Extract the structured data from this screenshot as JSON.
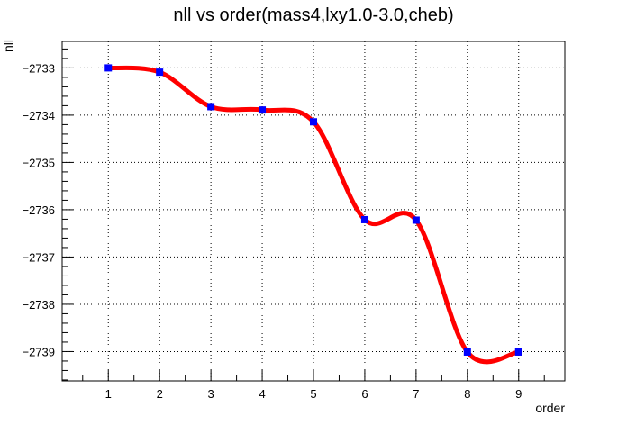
{
  "chart_data": {
    "type": "line",
    "title": "nll vs order(mass4,lxy1.0-3.0,cheb)",
    "xlabel": "order",
    "ylabel": "nll",
    "xlim": [
      0.1,
      9.9
    ],
    "ylim": [
      -2739.62,
      -2732.44
    ],
    "x_ticks": [
      1,
      2,
      3,
      4,
      5,
      6,
      7,
      8,
      9
    ],
    "y_ticks": [
      -2739,
      -2738,
      -2737,
      -2736,
      -2735,
      -2734,
      -2733
    ],
    "x_tick_labels": [
      "1",
      "2",
      "3",
      "4",
      "5",
      "6",
      "7",
      "8",
      "9"
    ],
    "y_tick_labels": [
      "−2739",
      "−2738",
      "−2737",
      "−2736",
      "−2735",
      "−2734",
      "−2733"
    ],
    "grid": true,
    "series": [
      {
        "x": [
          1,
          2,
          3,
          4,
          5,
          6,
          7,
          8,
          9
        ],
        "y": [
          -2733.0,
          -2733.09,
          -2733.82,
          -2733.89,
          -2734.14,
          -2736.21,
          -2736.22,
          -2739.01,
          -2739.01
        ],
        "line_color": "#ff0000",
        "marker_color": "#0000ff",
        "marker": "square",
        "smooth": true
      }
    ]
  }
}
